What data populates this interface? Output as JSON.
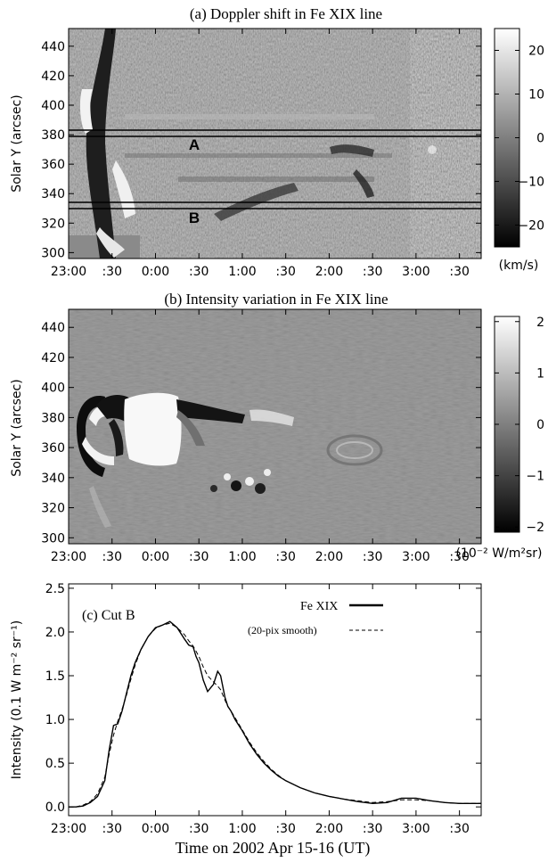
{
  "panels": {
    "a": {
      "title": "(a)   Doppler shift in Fe XIX line",
      "ylabel": "Solar Y (arcsec)",
      "yticks": [
        "300",
        "320",
        "340",
        "360",
        "380",
        "400",
        "420",
        "440"
      ],
      "xticks": [
        "23:00",
        ":30",
        "0:00",
        ":30",
        "1:00",
        ":30",
        "2:00",
        ":30",
        "3:00",
        ":30"
      ],
      "colorbar_ticks": [
        "20",
        "10",
        "0",
        "−10",
        "−20"
      ],
      "colorbar_unit": "(km/s)",
      "cut_labels": [
        "A",
        "B"
      ]
    },
    "b": {
      "title": "(b)  Intensity variation in Fe XIX line",
      "ylabel": "Solar Y (arcsec)",
      "yticks": [
        "300",
        "320",
        "340",
        "360",
        "380",
        "400",
        "420",
        "440"
      ],
      "xticks": [
        "23:00",
        ":30",
        "0:00",
        ":30",
        "1:00",
        ":30",
        "2:00",
        ":30",
        "3:00",
        ":30"
      ],
      "colorbar_ticks": [
        "2",
        "1",
        "0",
        "−1",
        "−2"
      ],
      "colorbar_unit": "(10⁻² W/m²sr)"
    },
    "c": {
      "label": "(c)  Cut B",
      "ylabel": "Intensity (0.1 W m⁻² sr⁻¹)",
      "xlabel": "Time on 2002 Apr 15-16 (UT)",
      "yticks": [
        "0.0",
        "0.5",
        "1.0",
        "1.5",
        "2.0",
        "2.5"
      ],
      "xticks": [
        "23:00",
        ":30",
        "0:00",
        ":30",
        "1:00",
        ":30",
        "2:00",
        ":30",
        "3:00",
        ":30"
      ],
      "legend_solid": "Fe XIX",
      "legend_dashed": "(20-pix smooth)"
    }
  },
  "chart_data": [
    {
      "type": "heatmap",
      "title": "(a)   Doppler shift in Fe XIX line",
      "ylabel": "Solar Y (arcsec)",
      "ylim": [
        296,
        452
      ],
      "x_range": [
        "23:00",
        "3:45"
      ],
      "colorbar_range": [
        -25,
        25
      ],
      "colorbar_unit": "km/s",
      "cuts": [
        {
          "name": "A",
          "y": [
            380,
            384
          ]
        },
        {
          "name": "B",
          "y": [
            332,
            336
          ]
        }
      ]
    },
    {
      "type": "heatmap",
      "title": "(b)  Intensity variation in Fe XIX line",
      "ylabel": "Solar Y (arcsec)",
      "ylim": [
        296,
        452
      ],
      "x_range": [
        "23:00",
        "3:45"
      ],
      "colorbar_range": [
        -2.1,
        2.1
      ],
      "colorbar_unit": "10^-2 W/m^2sr"
    },
    {
      "type": "line",
      "title": "(c)  Cut B",
      "xlabel": "Time on 2002 Apr 15-16 (UT)",
      "ylabel": "Intensity (0.1 W m^-2 sr^-1)",
      "ylim": [
        -0.1,
        2.55
      ],
      "x_unit": "minutes after 23:00",
      "xlim": [
        0,
        285
      ],
      "series": [
        {
          "name": "Fe XIX",
          "style": "solid",
          "x": [
            0,
            5,
            10,
            15,
            20,
            25,
            28,
            31,
            34,
            37,
            40,
            43,
            46,
            50,
            55,
            60,
            65,
            70,
            75,
            80,
            83,
            86,
            88,
            90,
            93,
            96,
            100,
            103,
            105,
            108,
            110,
            112,
            115,
            120,
            125,
            130,
            135,
            140,
            145,
            150,
            160,
            170,
            180,
            190,
            200,
            210,
            220,
            230,
            240,
            250,
            260,
            270,
            285
          ],
          "y": [
            0,
            0.0,
            0.01,
            0.05,
            0.12,
            0.3,
            0.65,
            0.93,
            0.95,
            1.1,
            1.3,
            1.5,
            1.65,
            1.8,
            1.95,
            2.05,
            2.08,
            2.12,
            2.05,
            1.92,
            1.85,
            1.83,
            1.72,
            1.65,
            1.45,
            1.32,
            1.4,
            1.55,
            1.5,
            1.25,
            1.15,
            1.1,
            1.0,
            0.87,
            0.72,
            0.6,
            0.5,
            0.42,
            0.35,
            0.3,
            0.22,
            0.16,
            0.12,
            0.09,
            0.06,
            0.04,
            0.05,
            0.1,
            0.1,
            0.07,
            0.05,
            0.04,
            0.04
          ]
        },
        {
          "name": "(20-pix smooth)",
          "style": "dashed",
          "x": [
            0,
            5,
            10,
            15,
            20,
            25,
            28,
            31,
            34,
            37,
            40,
            43,
            46,
            50,
            55,
            60,
            65,
            70,
            75,
            80,
            83,
            86,
            88,
            90,
            93,
            96,
            100,
            103,
            105,
            108,
            110,
            112,
            115,
            120,
            125,
            130,
            135,
            140,
            145,
            150,
            160,
            170,
            180,
            190,
            200,
            210,
            220,
            230,
            240,
            250,
            260,
            270,
            285
          ],
          "y": [
            0,
            0.0,
            0.02,
            0.06,
            0.15,
            0.34,
            0.6,
            0.82,
            0.98,
            1.12,
            1.28,
            1.46,
            1.62,
            1.8,
            1.95,
            2.04,
            2.08,
            2.1,
            2.05,
            1.97,
            1.9,
            1.84,
            1.78,
            1.72,
            1.6,
            1.5,
            1.43,
            1.38,
            1.34,
            1.22,
            1.15,
            1.1,
            1.02,
            0.88,
            0.74,
            0.62,
            0.52,
            0.43,
            0.36,
            0.3,
            0.22,
            0.16,
            0.12,
            0.09,
            0.07,
            0.05,
            0.06,
            0.08,
            0.08,
            0.07,
            0.05,
            0.04,
            0.04
          ]
        }
      ]
    }
  ]
}
